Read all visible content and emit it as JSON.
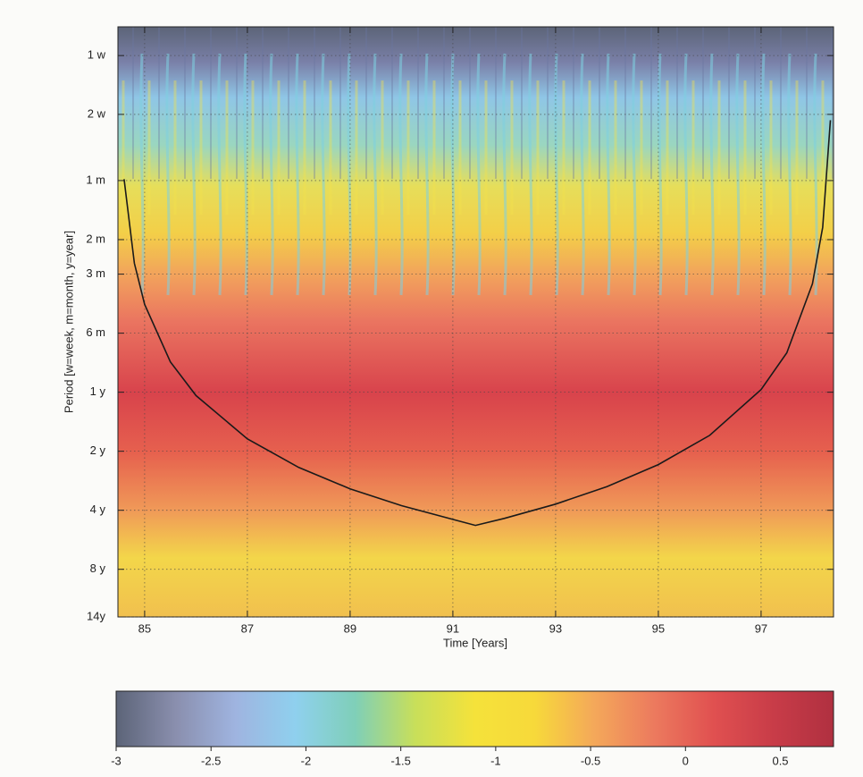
{
  "chart_data": {
    "type": "heatmap",
    "x_label": "Time [Years]",
    "y_label": "Period [w=week, m=month, y=year]",
    "xlim": [
      84.48,
      98.41
    ],
    "xticks": [
      85,
      87,
      89,
      91,
      93,
      95,
      97
    ],
    "ylim": [
      0.0137,
      14
    ],
    "y_log": true,
    "y_inverted": true,
    "yticks": [
      {
        "value": 0.0192,
        "label": "1 w"
      },
      {
        "value": 0.0383,
        "label": "2 w"
      },
      {
        "value": 0.0833,
        "label": "1 m"
      },
      {
        "value": 0.1667,
        "label": "2 m"
      },
      {
        "value": 0.25,
        "label": "3 m"
      },
      {
        "value": 0.5,
        "label": "6 m"
      },
      {
        "value": 1,
        "label": "1 y"
      },
      {
        "value": 2,
        "label": "2 y"
      },
      {
        "value": 4,
        "label": "4 y"
      },
      {
        "value": 8,
        "label": "8 y"
      },
      {
        "value": 14,
        "label": "14y"
      }
    ],
    "grid": true,
    "coi": {
      "color": "#1a1a1a",
      "x": [
        84.6,
        84.8,
        85,
        85.5,
        86,
        87,
        88,
        89,
        90,
        91.44,
        92,
        93,
        94,
        95,
        96,
        97,
        97.5,
        98,
        98.2,
        98.35
      ],
      "y": [
        0.082,
        0.22,
        0.357,
        0.7,
        1.04,
        1.73,
        2.42,
        3.11,
        3.79,
        4.78,
        4.4,
        3.72,
        3.03,
        2.34,
        1.66,
        0.97,
        0.63,
        0.28,
        0.144,
        0.041
      ]
    },
    "colorbar": {
      "clim": [
        -3,
        0.78
      ],
      "ticks": [
        -3,
        -2.5,
        -2,
        -1.5,
        -1,
        -0.5,
        0,
        0.5
      ],
      "colormap": [
        "#5c6478",
        "#8a8fae",
        "#9fb4e0",
        "#8fd0ee",
        "#7fcfb8",
        "#c8df5a",
        "#f5e23a",
        "#f7d93a",
        "#f4a85a",
        "#ec7a5e",
        "#e05050",
        "#c83c48",
        "#b03040"
      ]
    }
  }
}
